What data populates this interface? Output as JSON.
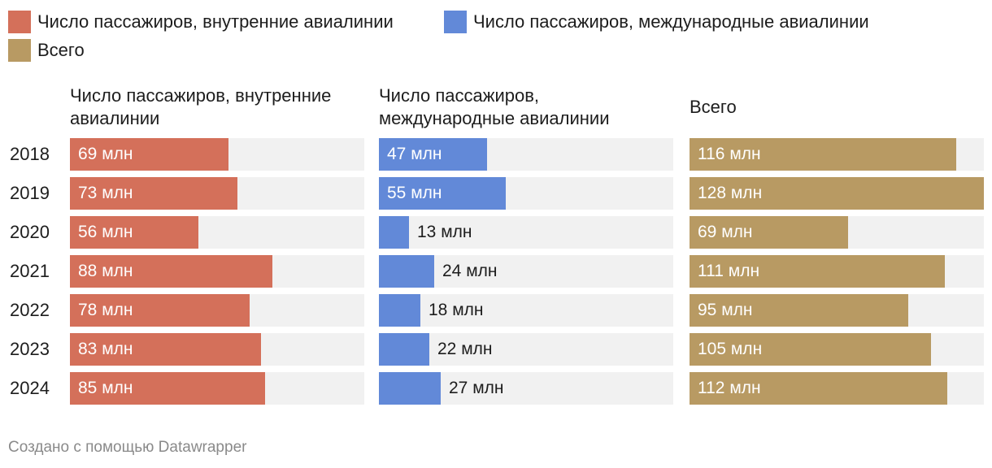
{
  "chart_data": {
    "type": "bar",
    "orientation": "horizontal",
    "layout": "small-multiples",
    "categories": [
      "2018",
      "2019",
      "2020",
      "2021",
      "2022",
      "2023",
      "2024"
    ],
    "value_suffix": " млн",
    "series": [
      {
        "name": "Число пассажиров, внутренние авиалинии",
        "panel_title": "Число пассажиров, внутренние авиалинии",
        "color": "#d4705a",
        "values": [
          69,
          73,
          56,
          88,
          78,
          83,
          85
        ],
        "labels": [
          "69 млн",
          "73 млн",
          "56 млн",
          "88 млн",
          "78 млн",
          "83 млн",
          "85 млн"
        ]
      },
      {
        "name": "Число пассажиров, международные авиалинии",
        "panel_title": "Число пассажиров, международные авиалинии",
        "color": "#6289d8",
        "values": [
          47,
          55,
          13,
          24,
          18,
          22,
          27
        ],
        "labels": [
          "47 млн",
          "55 млн",
          "13 млн",
          "24 млн",
          "18 млн",
          "22 млн",
          "27 млн"
        ]
      },
      {
        "name": "Всего",
        "panel_title": "Всего",
        "color": "#b89a63",
        "values": [
          116,
          128,
          69,
          111,
          95,
          105,
          112
        ],
        "labels": [
          "116 млн",
          "128 млн",
          "69 млн",
          "111 млн",
          "95 млн",
          "105 млн",
          "112 млн"
        ]
      }
    ],
    "xlim": [
      0,
      128
    ],
    "legend": "top-left",
    "grid": false
  },
  "footer": {
    "credit": "Создано с помощью Datawrapper"
  },
  "colors": {
    "track": "#f1f1f1",
    "text": "#1d1d1d",
    "footer_text": "#8a8a8a"
  }
}
